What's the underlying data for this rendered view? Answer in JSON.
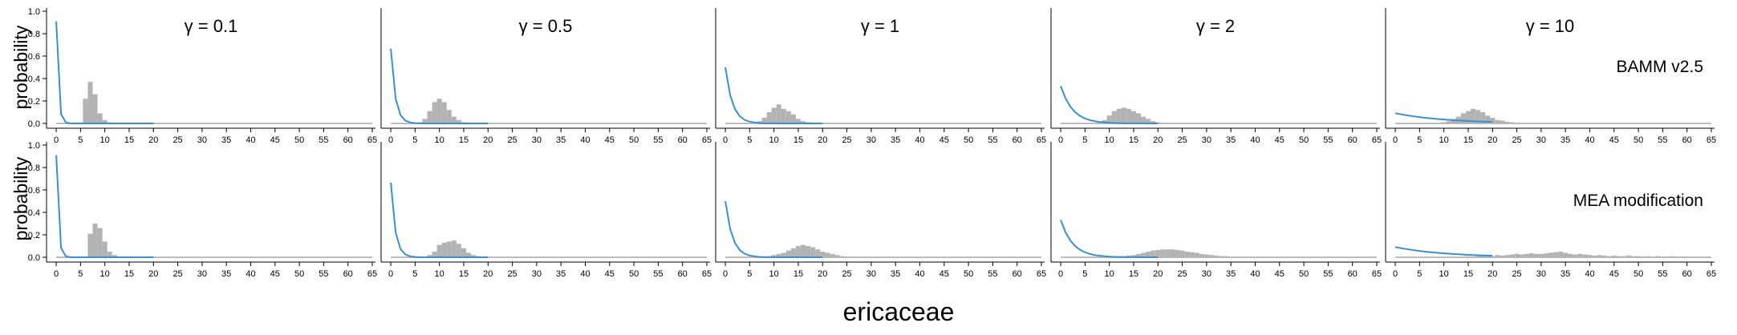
{
  "chart_data": {
    "type": "bar",
    "description_series": [
      "bars: posterior histogram",
      "line: prior distribution"
    ],
    "xlabel": "ericaceae",
    "ylabel": "probability",
    "x_ticks": [
      0,
      5,
      10,
      15,
      20,
      25,
      30,
      35,
      40,
      45,
      50,
      55,
      60,
      65
    ],
    "y_ticks": [
      "0.0",
      "0.2",
      "0.4",
      "0.6",
      "0.8",
      "1.0"
    ],
    "xlim": [
      -1,
      65
    ],
    "ylim": [
      0,
      1
    ],
    "gammas": [
      0.1,
      0.5,
      1,
      2,
      10
    ],
    "column_titles": [
      "γ = 0.1",
      "γ = 0.5",
      "γ = 1",
      "γ = 2",
      "γ = 10"
    ],
    "rows": [
      {
        "label": "BAMM v2.5",
        "panels": [
          {
            "gamma": 0.1,
            "hist": [
              [
                6,
                0.22
              ],
              [
                7,
                0.37
              ],
              [
                8,
                0.26
              ],
              [
                9,
                0.09
              ],
              [
                10,
                0.03
              ],
              [
                11,
                0.01
              ]
            ]
          },
          {
            "gamma": 0.5,
            "hist": [
              [
                6,
                0.01
              ],
              [
                7,
                0.04
              ],
              [
                8,
                0.11
              ],
              [
                9,
                0.19
              ],
              [
                10,
                0.22
              ],
              [
                11,
                0.19
              ],
              [
                12,
                0.12
              ],
              [
                13,
                0.06
              ],
              [
                14,
                0.03
              ],
              [
                15,
                0.01
              ],
              [
                16,
                0.005
              ]
            ]
          },
          {
            "gamma": 1,
            "hist": [
              [
                6,
                0.005
              ],
              [
                7,
                0.02
              ],
              [
                8,
                0.05
              ],
              [
                9,
                0.1
              ],
              [
                10,
                0.14
              ],
              [
                11,
                0.17
              ],
              [
                12,
                0.13
              ],
              [
                13,
                0.11
              ],
              [
                14,
                0.08
              ],
              [
                15,
                0.04
              ],
              [
                16,
                0.02
              ],
              [
                17,
                0.01
              ],
              [
                18,
                0.005
              ]
            ]
          },
          {
            "gamma": 2,
            "hist": [
              [
                8,
                0.01
              ],
              [
                9,
                0.03
              ],
              [
                10,
                0.07
              ],
              [
                11,
                0.11
              ],
              [
                12,
                0.13
              ],
              [
                13,
                0.14
              ],
              [
                14,
                0.13
              ],
              [
                15,
                0.11
              ],
              [
                16,
                0.09
              ],
              [
                17,
                0.06
              ],
              [
                18,
                0.04
              ],
              [
                19,
                0.02
              ],
              [
                20,
                0.01
              ],
              [
                21,
                0.005
              ]
            ]
          },
          {
            "gamma": 10,
            "hist": [
              [
                10,
                0.01
              ],
              [
                11,
                0.02
              ],
              [
                12,
                0.04
              ],
              [
                13,
                0.06
              ],
              [
                14,
                0.09
              ],
              [
                15,
                0.11
              ],
              [
                16,
                0.13
              ],
              [
                17,
                0.12
              ],
              [
                18,
                0.1
              ],
              [
                19,
                0.07
              ],
              [
                20,
                0.05
              ],
              [
                21,
                0.03
              ],
              [
                22,
                0.025
              ],
              [
                23,
                0.015
              ],
              [
                24,
                0.01
              ],
              [
                25,
                0.005
              ]
            ]
          }
        ]
      },
      {
        "label": "MEA modification",
        "panels": [
          {
            "gamma": 0.1,
            "hist": [
              [
                7,
                0.21
              ],
              [
                8,
                0.3
              ],
              [
                9,
                0.26
              ],
              [
                10,
                0.14
              ],
              [
                11,
                0.05
              ],
              [
                12,
                0.02
              ]
            ]
          },
          {
            "gamma": 0.5,
            "hist": [
              [
                7,
                0.005
              ],
              [
                8,
                0.02
              ],
              [
                9,
                0.05
              ],
              [
                10,
                0.11
              ],
              [
                11,
                0.13
              ],
              [
                12,
                0.14
              ],
              [
                13,
                0.15
              ],
              [
                14,
                0.12
              ],
              [
                15,
                0.08
              ],
              [
                16,
                0.04
              ],
              [
                17,
                0.02
              ],
              [
                18,
                0.01
              ]
            ]
          },
          {
            "gamma": 1,
            "hist": [
              [
                8,
                0.005
              ],
              [
                9,
                0.01
              ],
              [
                10,
                0.02
              ],
              [
                11,
                0.03
              ],
              [
                12,
                0.04
              ],
              [
                13,
                0.06
              ],
              [
                14,
                0.08
              ],
              [
                15,
                0.1
              ],
              [
                16,
                0.11
              ],
              [
                17,
                0.1
              ],
              [
                18,
                0.09
              ],
              [
                19,
                0.07
              ],
              [
                20,
                0.05
              ],
              [
                21,
                0.04
              ],
              [
                22,
                0.03
              ],
              [
                23,
                0.02
              ],
              [
                24,
                0.01
              ],
              [
                25,
                0.005
              ],
              [
                26,
                0.003
              ]
            ]
          },
          {
            "gamma": 2,
            "hist": [
              [
                10,
                0.005
              ],
              [
                11,
                0.005
              ],
              [
                12,
                0.01
              ],
              [
                13,
                0.01
              ],
              [
                14,
                0.015
              ],
              [
                15,
                0.02
              ],
              [
                16,
                0.03
              ],
              [
                17,
                0.04
              ],
              [
                18,
                0.05
              ],
              [
                19,
                0.06
              ],
              [
                20,
                0.065
              ],
              [
                21,
                0.07
              ],
              [
                22,
                0.07
              ],
              [
                23,
                0.07
              ],
              [
                24,
                0.065
              ],
              [
                25,
                0.06
              ],
              [
                26,
                0.05
              ],
              [
                27,
                0.045
              ],
              [
                28,
                0.04
              ],
              [
                29,
                0.03
              ],
              [
                30,
                0.025
              ],
              [
                31,
                0.02
              ],
              [
                32,
                0.015
              ],
              [
                33,
                0.01
              ],
              [
                34,
                0.01
              ],
              [
                35,
                0.005
              ],
              [
                36,
                0.005
              ],
              [
                37,
                0.003
              ]
            ]
          },
          {
            "gamma": 10,
            "hist": [
              [
                15,
                0.005
              ],
              [
                16,
                0.005
              ],
              [
                17,
                0.01
              ],
              [
                18,
                0.01
              ],
              [
                19,
                0.015
              ],
              [
                20,
                0.01
              ],
              [
                21,
                0.02
              ],
              [
                22,
                0.015
              ],
              [
                23,
                0.02
              ],
              [
                24,
                0.025
              ],
              [
                25,
                0.03
              ],
              [
                26,
                0.025
              ],
              [
                27,
                0.03
              ],
              [
                28,
                0.035
              ],
              [
                29,
                0.03
              ],
              [
                30,
                0.03
              ],
              [
                31,
                0.035
              ],
              [
                32,
                0.04
              ],
              [
                33,
                0.045
              ],
              [
                34,
                0.05
              ],
              [
                35,
                0.04
              ],
              [
                36,
                0.03
              ],
              [
                37,
                0.025
              ],
              [
                38,
                0.03
              ],
              [
                39,
                0.025
              ],
              [
                40,
                0.02
              ],
              [
                41,
                0.015
              ],
              [
                42,
                0.02
              ],
              [
                43,
                0.015
              ],
              [
                44,
                0.01
              ],
              [
                45,
                0.015
              ],
              [
                46,
                0.01
              ],
              [
                47,
                0.01
              ],
              [
                48,
                0.015
              ],
              [
                49,
                0.01
              ],
              [
                50,
                0.01
              ],
              [
                51,
                0.005
              ],
              [
                52,
                0.01
              ],
              [
                53,
                0.005
              ],
              [
                54,
                0.01
              ],
              [
                55,
                0.005
              ],
              [
                56,
                0.005
              ],
              [
                57,
                0.01
              ],
              [
                58,
                0.005
              ],
              [
                59,
                0.005
              ],
              [
                60,
                0.005
              ],
              [
                61,
                0.003
              ],
              [
                62,
                0.005
              ]
            ]
          }
        ]
      }
    ],
    "prior_xmax": 20,
    "grid": false,
    "colors": {
      "bars": "#b3b3b3",
      "line": "#3b8fd1",
      "baseline": "#bdbdbd",
      "axis": "#000000"
    }
  }
}
